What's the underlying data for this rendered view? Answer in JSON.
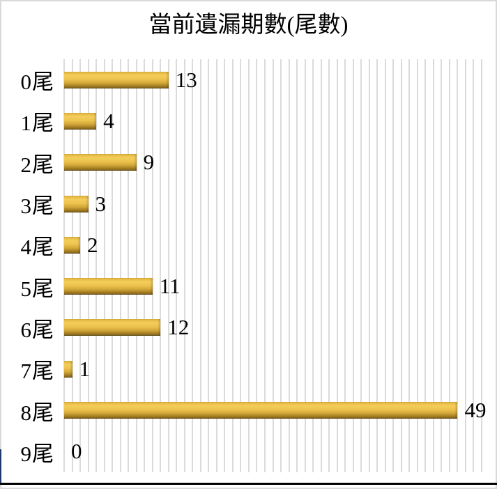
{
  "chart_data": {
    "type": "bar",
    "orientation": "horizontal",
    "title": "當前遺漏期數(尾數)",
    "categories": [
      "0尾",
      "1尾",
      "2尾",
      "3尾",
      "4尾",
      "5尾",
      "6尾",
      "7尾",
      "8尾",
      "9尾"
    ],
    "values": [
      13,
      4,
      9,
      3,
      2,
      11,
      12,
      1,
      49,
      0
    ],
    "xlabel": "",
    "ylabel": "",
    "xlim": [
      0,
      52
    ],
    "gridline_step": 1,
    "grid": "vertical-minor-gridlines",
    "legend_position": "none",
    "data_labels": "outside-end",
    "bar_style": "cylinder-gradient",
    "colors": {
      "bar_gradient": [
        "#dfb23d",
        "#f4cd5a",
        "#eec34f",
        "#d2a738",
        "#a37d24",
        "#7e5f16"
      ],
      "gridline": "#dbdbdb",
      "frame": "#d9d9d9",
      "text": "#000000",
      "background": "#ffffff",
      "cell_border_bottom": "#000000",
      "cell_border_left": "#1c3a6b"
    }
  }
}
